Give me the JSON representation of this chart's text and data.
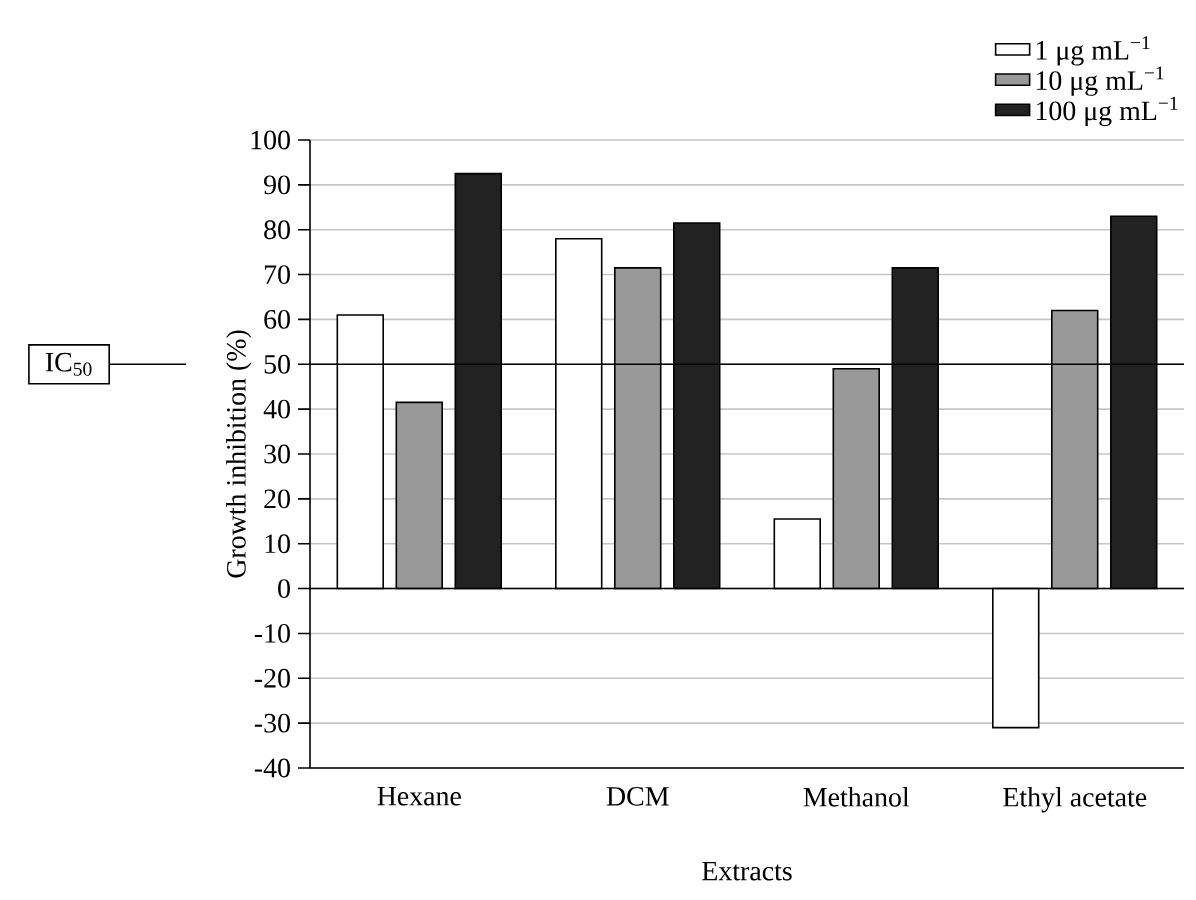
{
  "chart_data": {
    "type": "bar",
    "xlabel": "Extracts",
    "ylabel": "Growth inhibition (%)",
    "categories": [
      "Hexane",
      "DCM",
      "Methanol",
      "Ethyl acetate"
    ],
    "series": [
      {
        "name": "1 μg mL$^{−1}$",
        "color": "#ffffff",
        "values": [
          61,
          78,
          15.5,
          -31
        ]
      },
      {
        "name": "10 μg mL$^{−1}$",
        "color": "#999999",
        "values": [
          41.5,
          71.5,
          49,
          62
        ]
      },
      {
        "name": "100 μg mL$^{−1}$",
        "color": "#222222",
        "values": [
          92.5,
          81.5,
          71.5,
          83
        ]
      }
    ],
    "ylim": [
      -40,
      100
    ],
    "yticks": [
      -40,
      -30,
      -20,
      -10,
      0,
      10,
      20,
      30,
      40,
      50,
      60,
      70,
      80,
      90,
      100
    ],
    "grid": "y",
    "legend": "top right",
    "ref_lines": [
      {
        "axis": "y",
        "value": 50,
        "label": "IC$_{50}$",
        "color": "#000000"
      }
    ]
  }
}
